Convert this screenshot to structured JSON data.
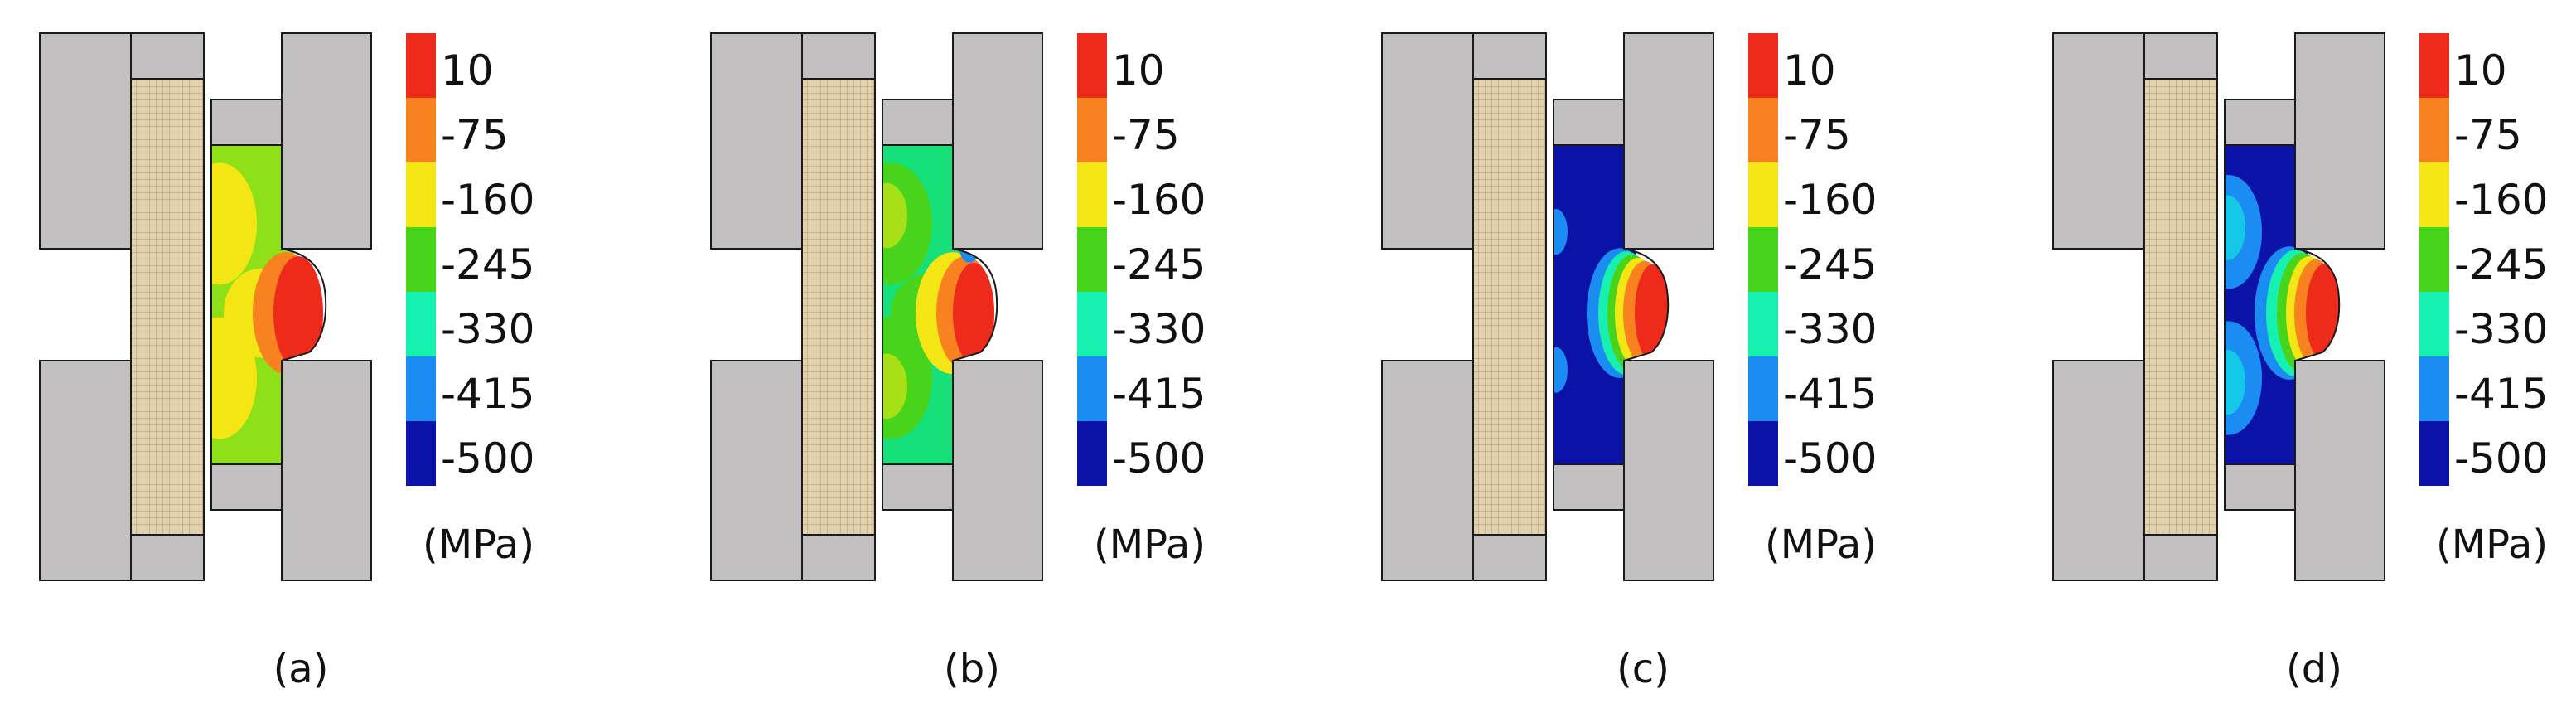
{
  "panels": [
    {
      "id": "a",
      "caption": "(a)",
      "contour": "a"
    },
    {
      "id": "b",
      "caption": "(b)",
      "contour": "b"
    },
    {
      "id": "c",
      "caption": "(c)",
      "contour": "c"
    },
    {
      "id": "d",
      "caption": "(d)",
      "contour": "d"
    }
  ],
  "colorbar": {
    "unit": "(MPa)",
    "ticks": [
      "10",
      "-75",
      "-160",
      "-245",
      "-330",
      "-415",
      "-500"
    ],
    "colors": [
      "#ee2a1b",
      "#f7821f",
      "#f4e614",
      "#49d41c",
      "#16f0b1",
      "#1b8cf2",
      "#0b12a8"
    ]
  },
  "colors": {
    "die": "#c1bfbf",
    "mandrel": "#e3d2ad",
    "outline": "#1a1a1a"
  }
}
